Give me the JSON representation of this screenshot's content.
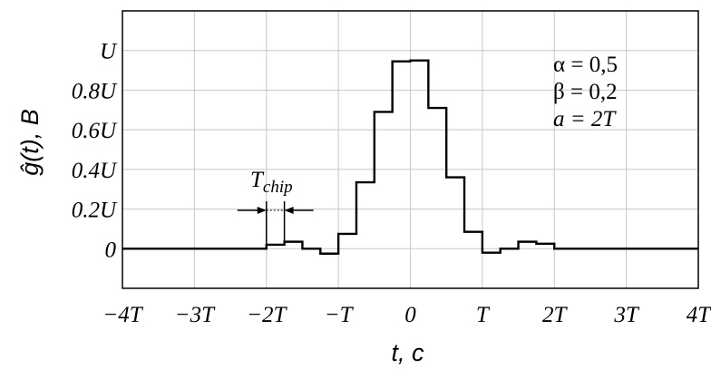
{
  "chart_data": {
    "type": "line",
    "xlabel": "t, c",
    "ylabel": "ĝ(t), B",
    "xlim": [
      -4,
      4
    ],
    "ylim": [
      -0.2,
      1.2
    ],
    "grid": true,
    "x_ticks": [
      {
        "value": -4,
        "label": "−4T"
      },
      {
        "value": -3,
        "label": "−3T"
      },
      {
        "value": -2,
        "label": "−2T"
      },
      {
        "value": -1,
        "label": "−T"
      },
      {
        "value": 0,
        "label": "0"
      },
      {
        "value": 1,
        "label": "T"
      },
      {
        "value": 2,
        "label": "2T"
      },
      {
        "value": 3,
        "label": "3T"
      },
      {
        "value": 4,
        "label": "4T"
      }
    ],
    "y_ticks": [
      {
        "value": 0,
        "label": "0"
      },
      {
        "value": 0.2,
        "label": "0.2U"
      },
      {
        "value": 0.4,
        "label": "0.4U"
      },
      {
        "value": 0.6,
        "label": "0.6U"
      },
      {
        "value": 0.8,
        "label": "0.8U"
      },
      {
        "value": 1.0,
        "label": "U"
      }
    ],
    "series": [
      {
        "style": "step",
        "color": "#000000",
        "x": [
          -4,
          -2,
          -1.75,
          -1.5,
          -1.25,
          -1.0,
          -0.75,
          -0.5,
          -0.25,
          0.0,
          0.25,
          0.5,
          0.75,
          1.0,
          1.25,
          1.5,
          1.75,
          2.0,
          4
        ],
        "y": [
          0,
          0.02,
          0.035,
          0.0,
          -0.025,
          0.075,
          0.335,
          0.69,
          0.945,
          0.95,
          0.71,
          0.36,
          0.085,
          -0.02,
          0.0,
          0.035,
          0.025,
          0.0,
          0
        ]
      }
    ],
    "annotations": {
      "alpha": "α = 0,5",
      "beta": "β = 0,2",
      "a": "a = 2T",
      "tchip_main": "T",
      "tchip_sub": "chip"
    }
  }
}
